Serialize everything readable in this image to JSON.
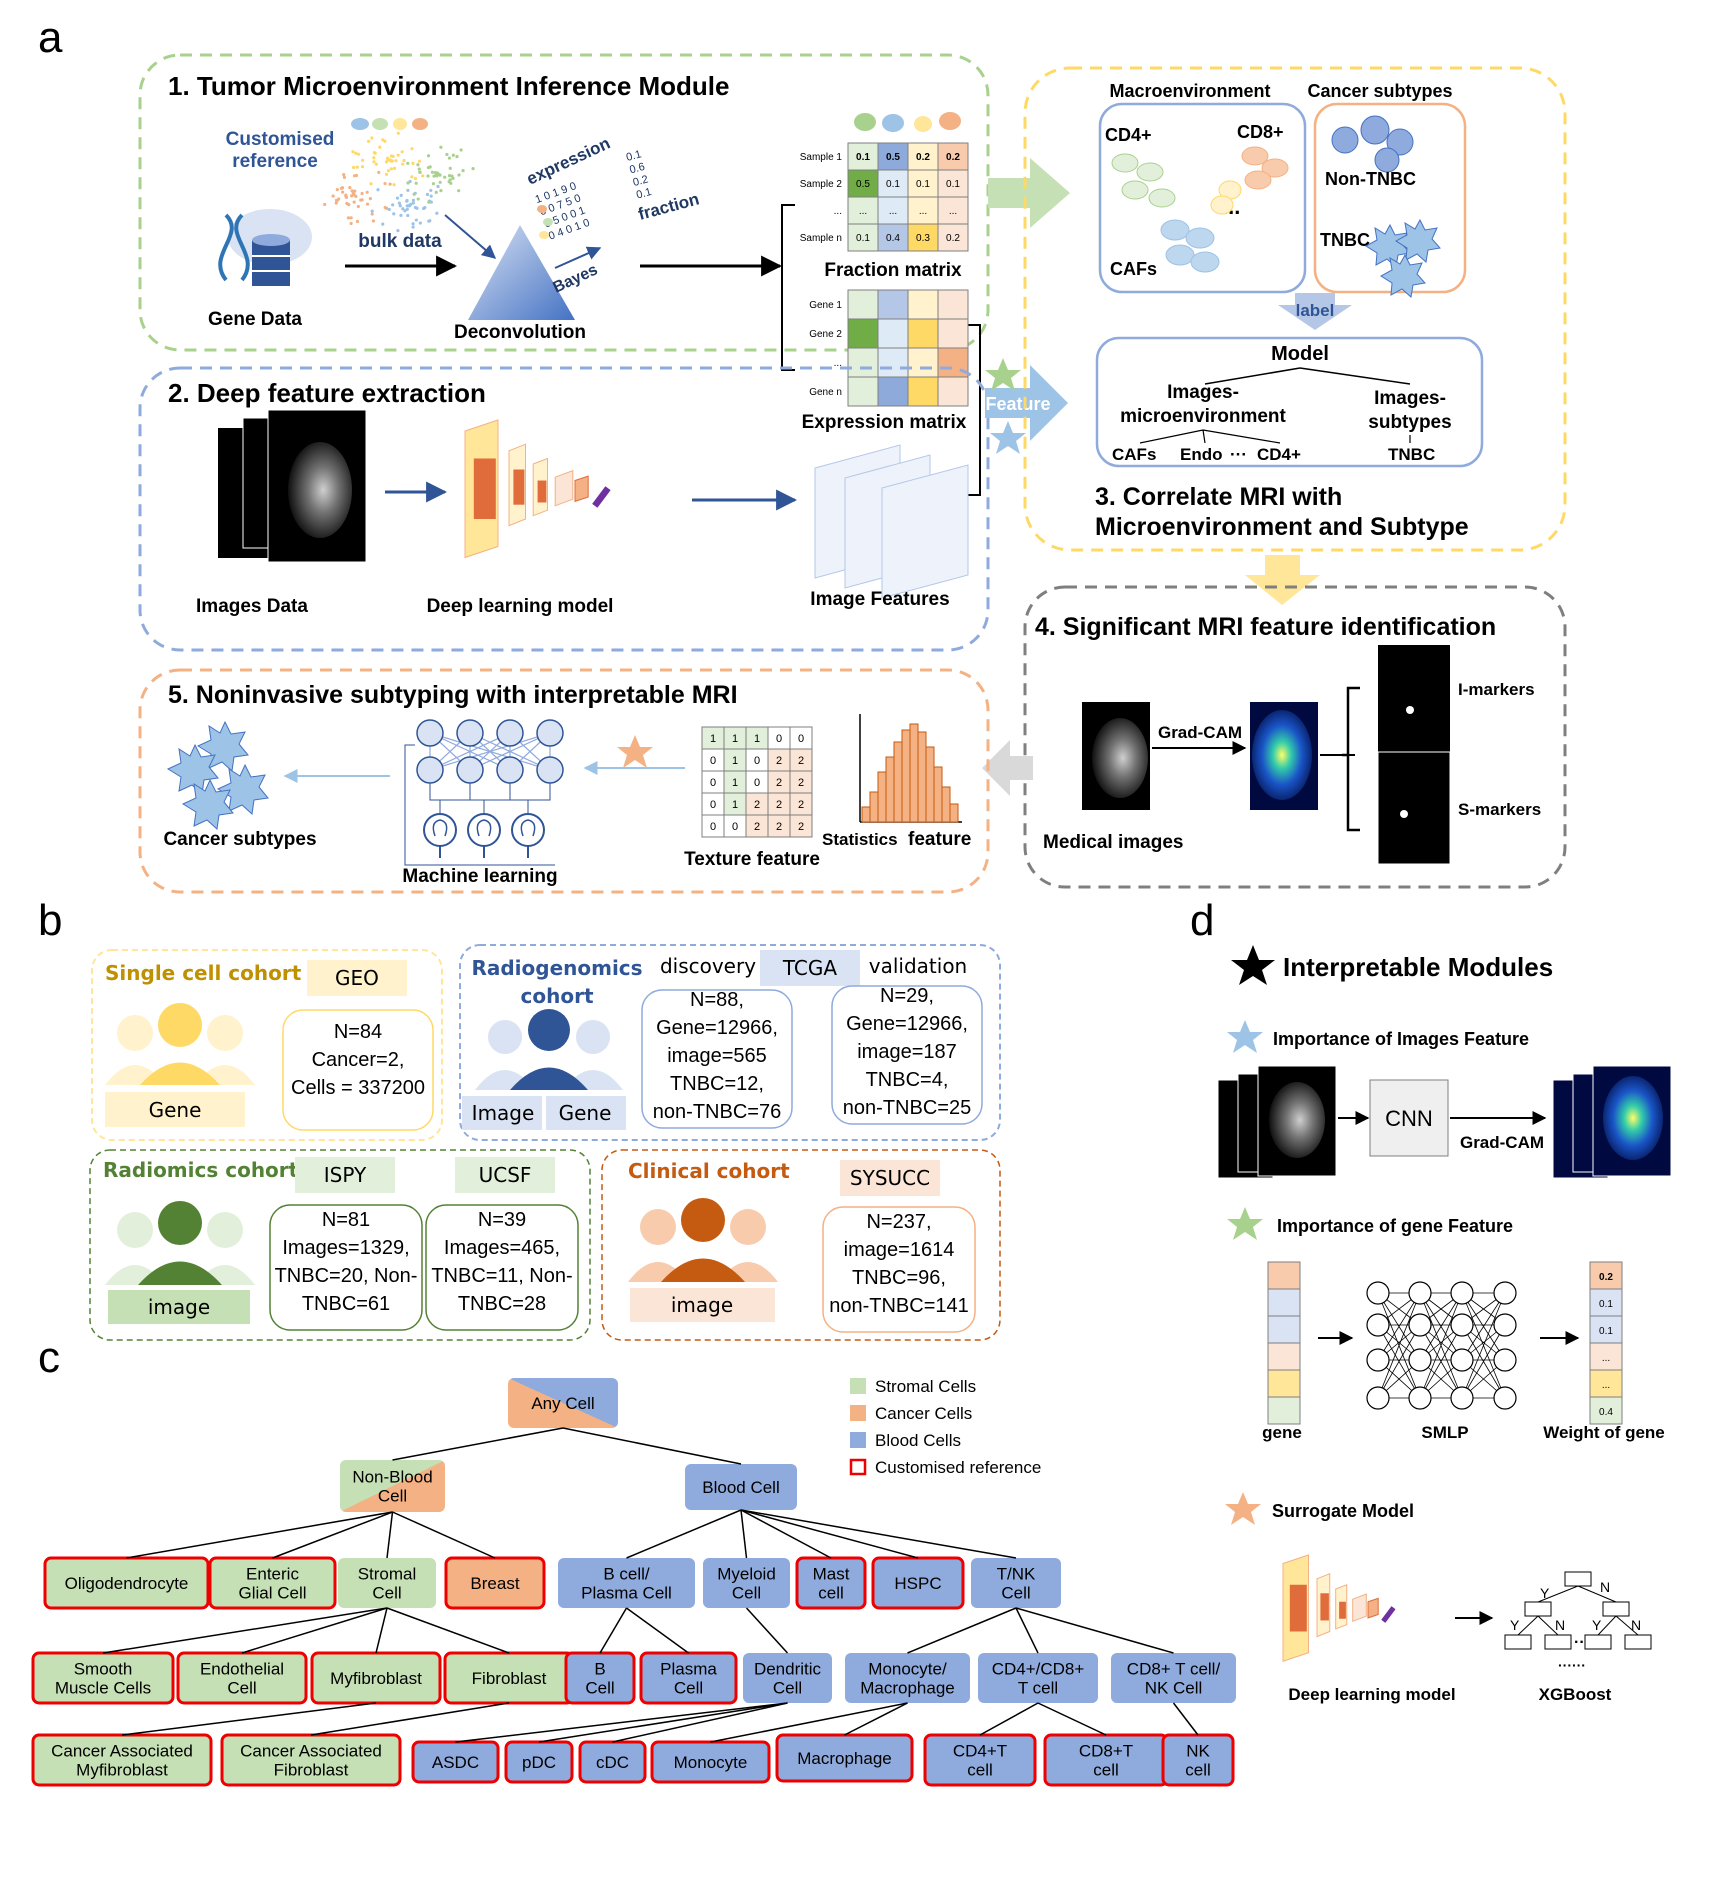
{
  "panels": {
    "a": "a",
    "b": "b",
    "c": "c",
    "d": "d"
  },
  "a": {
    "m1": {
      "title": "1. Tumor Microenvironment Inference Module",
      "custom_ref": [
        "Customised",
        "reference"
      ],
      "bulk": "bulk data",
      "gene_data": "Gene Data",
      "deconv": "Deconvolution",
      "expression": "expression",
      "fraction": "fraction",
      "bayes": "Bayes",
      "mat1": "1 0 1 9 0",
      "mat2": "0 0 7 5 0",
      "mat3": "0 5 0 0 1",
      "mat4": "0 4 0 1 0",
      "vec": [
        "0.1",
        "0.6",
        "0.2",
        "0.1"
      ]
    },
    "fraction_matrix": {
      "title": "Fraction matrix",
      "rows": [
        "Sample 1",
        "Sample 2",
        "...",
        "Sample n"
      ],
      "cells": [
        [
          "0.1",
          "0.5",
          "0.2",
          "0.2"
        ],
        [
          "0.5",
          "0.1",
          "0.1",
          "0.1"
        ],
        [
          "...",
          "...",
          "...",
          "..."
        ],
        [
          "0.1",
          "0.4",
          "0.3",
          "0.2"
        ]
      ],
      "colors": [
        [
          "#e2efda",
          "#8eaadb",
          "#fff2cc",
          "#f8cbad"
        ],
        [
          "#70ad47",
          "#deebf7",
          "#fff2cc",
          "#fbe5d6"
        ],
        [
          "#e2efda",
          "#deebf7",
          "#fff2cc",
          "#fbe5d6"
        ],
        [
          "#e2efda",
          "#b4c7e7",
          "#ffd966",
          "#fbe5d6"
        ]
      ]
    },
    "expression_matrix": {
      "title": "Expression matrix",
      "rows": [
        "Gene 1",
        "Gene 2",
        "...",
        "Gene n"
      ],
      "colors": [
        [
          "#e2efda",
          "#b4c7e7",
          "#fff2cc",
          "#fbe5d6"
        ],
        [
          "#70ad47",
          "#deebf7",
          "#ffd966",
          "#fbe5d6"
        ],
        [
          "#e2efda",
          "#deebf7",
          "#fff2cc",
          "#f4b183"
        ],
        [
          "#e2efda",
          "#8eaadb",
          "#ffd966",
          "#fbe5d6"
        ]
      ]
    },
    "m2": {
      "title": "2. Deep feature extraction",
      "images": "Images Data",
      "dl": "Deep learning model",
      "features": "Image Features"
    },
    "feature_label": "Feature",
    "m3": {
      "macro": "Macroenvironment",
      "subtypes": "Cancer subtypes",
      "cd4": "CD4+",
      "cd8": "CD8+",
      "cafs": "CAFs",
      "dots": "...",
      "nontnbc": "Non-TNBC",
      "tnbc": "TNBC",
      "label": "label",
      "model": "Model",
      "img_micro": [
        "Images-",
        "microenvironment"
      ],
      "img_sub": [
        "Images-",
        "subtypes"
      ],
      "leaves": [
        "CAFs",
        "Endo",
        "···",
        "CD4+"
      ],
      "leaf_tnbc": "TNBC",
      "title": [
        "3. Correlate MRI with",
        "Microenvironment and Subtype"
      ]
    },
    "m4": {
      "title": "4. Significant MRI feature identification",
      "gradcam": "Grad-CAM",
      "medical": "Medical images",
      "imarkers": "I-markers",
      "smarkers": "S-markers"
    },
    "m5": {
      "title": "5. Noninvasive subtyping with interpretable MRI",
      "cancer": "Cancer subtypes",
      "ml": "Machine learning",
      "texture": "Texture feature",
      "stats": "Statistics",
      "feature": "feature",
      "grid": [
        [
          "1",
          "1",
          "1",
          "0",
          "0"
        ],
        [
          "0",
          "1",
          "0",
          "2",
          "2"
        ],
        [
          "0",
          "1",
          "0",
          "2",
          "2"
        ],
        [
          "0",
          "1",
          "2",
          "2",
          "2"
        ],
        [
          "0",
          "0",
          "2",
          "2",
          "2"
        ]
      ],
      "hist": [
        0.15,
        0.3,
        0.5,
        0.65,
        0.8,
        0.92,
        0.98,
        0.9,
        0.75,
        0.55,
        0.35,
        0.18
      ]
    }
  },
  "b": {
    "single": {
      "title": "Single cell cohort",
      "tag": "GEO",
      "stats": [
        "N=84",
        "Cancer=2,",
        "Cells = 337200"
      ],
      "person": "Gene"
    },
    "radiog": {
      "title": [
        "Radiogenomics",
        "cohort"
      ],
      "discovery": "discovery",
      "tag": "TCGA",
      "validation": "validation",
      "disc": [
        "N=88,",
        "Gene=12966,",
        "image=565",
        "TNBC=12,",
        "non-TNBC=76"
      ],
      "val": [
        "N=29,",
        "Gene=12966,",
        "image=187",
        "TNBC=4,",
        "non-TNBC=25"
      ],
      "p1": "Image",
      "p2": "Gene"
    },
    "radiomics": {
      "title": "Radiomics cohort",
      "t1": "ISPY",
      "t2": "UCSF",
      "s1": [
        "N=81",
        "Images=1329,",
        "TNBC=20, Non-",
        "TNBC=61"
      ],
      "s2": [
        "N=39",
        "Images=465,",
        "TNBC=11, Non-",
        "TNBC=28"
      ],
      "person": "image"
    },
    "clinical": {
      "title": "Clinical cohort",
      "tag": "SYSUCC",
      "stats": [
        "N=237,",
        "image=1614",
        "TNBC=96,",
        "non-TNBC=141"
      ],
      "person": "image"
    }
  },
  "c": {
    "legend": [
      "Stromal Cells",
      "Cancer Cells",
      "Blood Cells",
      "Customised reference"
    ],
    "any": "Any Cell",
    "nonblood": [
      "Non-Blood",
      "Cell"
    ],
    "blood": "Blood Cell",
    "l2": [
      [
        "Oligodendrocyte"
      ],
      [
        "Enteric",
        "Glial Cell"
      ],
      [
        "Stromal",
        "Cell"
      ],
      [
        "Breast"
      ],
      [
        "B cell/",
        "Plasma Cell"
      ],
      [
        "Myeloid",
        "Cell"
      ],
      [
        "Mast",
        "cell"
      ],
      [
        "HSPC"
      ],
      [
        "T/NK",
        "Cell"
      ]
    ],
    "l3": [
      [
        "Smooth",
        "Muscle Cells"
      ],
      [
        "Endothelial",
        "Cell"
      ],
      [
        "Myfibroblast"
      ],
      [
        "Fibroblast"
      ],
      [
        "B",
        "Cell"
      ],
      [
        "Plasma",
        "Cell"
      ],
      [
        "Dendritic",
        "Cell"
      ],
      [
        "Monocyte/",
        "Macrophage"
      ],
      [
        "CD4+/CD8+",
        "T cell"
      ],
      [
        "CD8+ T cell/",
        "NK Cell"
      ]
    ],
    "l4": [
      [
        "Cancer Associated",
        "Myfibroblast"
      ],
      [
        "Cancer Associated",
        "Fibroblast"
      ],
      [
        "ASDC"
      ],
      [
        "pDC"
      ],
      [
        "cDC"
      ],
      [
        "Monocyte"
      ],
      [
        "Macrophage"
      ],
      [
        "CD4+T",
        "cell"
      ],
      [
        "CD8+T",
        "cell"
      ],
      [
        "NK",
        "cell"
      ]
    ]
  },
  "d": {
    "title": "Interpretable Modules",
    "h1": "Importance of Images Feature",
    "cnn": "CNN",
    "gradcam": "Grad-CAM",
    "h2": "Importance of gene Feature",
    "gene": "gene",
    "smlp": "SMLP",
    "weight": "Weight of gene",
    "weights": [
      "0.2",
      "0.1",
      "0.1",
      "...",
      "...",
      "0.4"
    ],
    "gene_colors": [
      "#f8cbad",
      "#dae3f3",
      "#dae3f3",
      "#fbe5d6",
      "#ffe699",
      "#e2efda"
    ],
    "h3": "Surrogate Model",
    "dl": "Deep learning model",
    "xgb": "XGBoost",
    "y": "Y",
    "n": "N",
    "dots": "··",
    "dots2": "······"
  }
}
